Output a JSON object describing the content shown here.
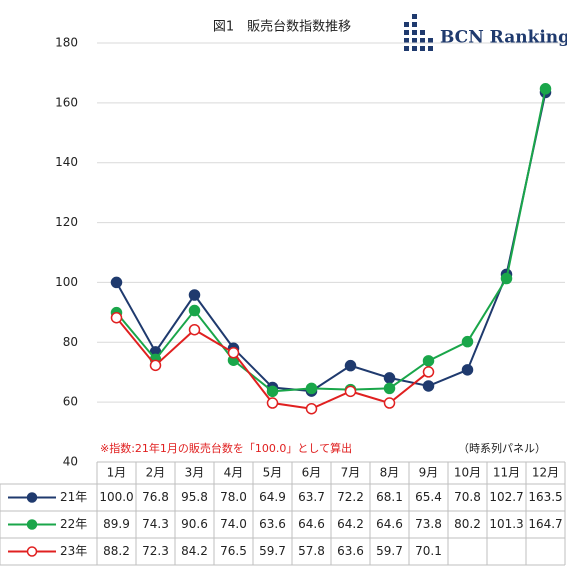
{
  "chart_data": {
    "type": "line",
    "title": "図1　販売台数指数推移",
    "logo": "BCN Ranking",
    "note": "※指数:21年1月の販売台数を「100.0」として算出",
    "annotation": "（時系列パネル）",
    "categories": [
      "1月",
      "2月",
      "3月",
      "4月",
      "5月",
      "6月",
      "7月",
      "8月",
      "9月",
      "10月",
      "11月",
      "12月"
    ],
    "series": [
      {
        "name": "21年",
        "color": "#1f3a6e",
        "marker_fill": "#1f3a6e",
        "values": [
          100.0,
          76.8,
          95.8,
          78.0,
          64.9,
          63.7,
          72.2,
          68.1,
          65.4,
          70.8,
          102.7,
          163.5
        ],
        "value_labels": [
          "100.0",
          "76.8",
          "95.8",
          "78.0",
          "64.9",
          "63.7",
          "72.2",
          "68.1",
          "65.4",
          "70.8",
          "102.7",
          "163.5"
        ]
      },
      {
        "name": "22年",
        "color": "#1aa64a",
        "marker_fill": "#1aa64a",
        "values": [
          89.9,
          74.3,
          90.6,
          74.0,
          63.6,
          64.6,
          64.2,
          64.6,
          73.8,
          80.2,
          101.3,
          164.7
        ],
        "value_labels": [
          "89.9",
          "74.3",
          "90.6",
          "74.0",
          "63.6",
          "64.6",
          "64.2",
          "64.6",
          "73.8",
          "80.2",
          "101.3",
          "164.7"
        ]
      },
      {
        "name": "23年",
        "color": "#e02020",
        "marker_fill": "#ffffff",
        "values": [
          88.2,
          72.3,
          84.2,
          76.5,
          59.7,
          57.8,
          63.6,
          59.7,
          70.1,
          null,
          null,
          null
        ],
        "value_labels": [
          "88.2",
          "72.3",
          "84.2",
          "76.5",
          "59.7",
          "57.8",
          "63.6",
          "59.7",
          "70.1",
          null,
          null,
          null
        ]
      }
    ],
    "ylim": [
      40,
      180
    ],
    "yticks": [
      40,
      60,
      80,
      100,
      120,
      140,
      160,
      180
    ],
    "grid": true
  }
}
